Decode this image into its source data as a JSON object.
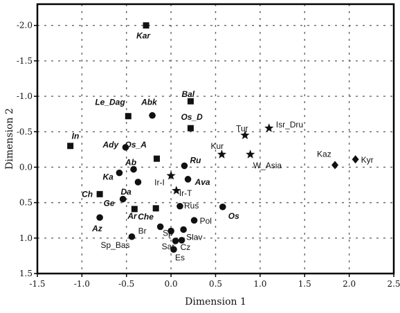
{
  "chart_data": {
    "type": "scatter",
    "title": "",
    "xlabel": "Dimension 1",
    "ylabel": "Dimension 2",
    "xlim": [
      -1.5,
      2.5
    ],
    "ylim": [
      -2.3,
      1.5
    ],
    "y_axis_inverted": true,
    "grid": "dashed",
    "x_ticks": [
      "-1.5",
      "-1.0",
      "-0.5",
      "0.0",
      "0.5",
      "1.0",
      "1.5",
      "2.0",
      "2.5"
    ],
    "x_tick_values": [
      -1.5,
      -1.0,
      -0.5,
      0.0,
      0.5,
      1.0,
      1.5,
      2.0,
      2.5
    ],
    "y_ticks": [
      "-2.0",
      "-1.5",
      "-1.0",
      "-0.5",
      "0.0",
      "0.5",
      "1.0",
      "1.5"
    ],
    "y_tick_values": [
      -2.0,
      -1.5,
      -1.0,
      -0.5,
      0.0,
      0.5,
      1.0,
      1.5
    ],
    "points": [
      {
        "label": "Kar",
        "x": -0.28,
        "y": -2.0,
        "marker": "square",
        "style": "bold"
      },
      {
        "label": "Bal",
        "x": 0.22,
        "y": -0.93,
        "marker": "square",
        "style": "bold"
      },
      {
        "label": "Le_Dag",
        "x": -0.48,
        "y": -0.72,
        "marker": "square",
        "style": "bold"
      },
      {
        "label": "Abk",
        "x": -0.21,
        "y": -0.73,
        "marker": "circle",
        "style": "bold"
      },
      {
        "label": "Os_D",
        "x": 0.22,
        "y": -0.55,
        "marker": "square",
        "style": "bold"
      },
      {
        "label": "In",
        "x": -1.13,
        "y": -0.3,
        "marker": "square",
        "style": "bold"
      },
      {
        "label": "Ady",
        "x": -0.51,
        "y": -0.28,
        "marker": "circle",
        "style": "bold"
      },
      {
        "label": "Os_A",
        "x": -0.16,
        "y": -0.12,
        "marker": "square",
        "style": "bold"
      },
      {
        "label": "Ab",
        "x": -0.42,
        "y": 0.03,
        "marker": "circle",
        "style": "bold"
      },
      {
        "label": "Ru",
        "x": 0.15,
        "y": -0.02,
        "marker": "circle",
        "style": "bold"
      },
      {
        "label": "Ka",
        "x": -0.58,
        "y": 0.08,
        "marker": "circle",
        "style": "bold"
      },
      {
        "label": "Ir-I",
        "x": 0.0,
        "y": 0.12,
        "marker": "star",
        "style": "normal"
      },
      {
        "label": "Ava",
        "x": 0.19,
        "y": 0.17,
        "marker": "circle",
        "style": "bold"
      },
      {
        "label": "Da",
        "x": -0.37,
        "y": 0.21,
        "marker": "circle",
        "style": "bold"
      },
      {
        "label": "Ir-T",
        "x": 0.06,
        "y": 0.33,
        "marker": "star",
        "style": "normal"
      },
      {
        "label": "Ch",
        "x": -0.8,
        "y": 0.38,
        "marker": "square",
        "style": "bold"
      },
      {
        "label": "Ge",
        "x": -0.54,
        "y": 0.45,
        "marker": "circle",
        "style": "bold"
      },
      {
        "label": "Rus",
        "x": 0.1,
        "y": 0.55,
        "marker": "circle",
        "style": "normal"
      },
      {
        "label": "Os",
        "x": 0.58,
        "y": 0.56,
        "marker": "circle",
        "style": "bold"
      },
      {
        "label": "Ar",
        "x": -0.41,
        "y": 0.59,
        "marker": "square",
        "style": "bold"
      },
      {
        "label": "Che",
        "x": -0.17,
        "y": 0.58,
        "marker": "square",
        "style": "bold"
      },
      {
        "label": "Az",
        "x": -0.8,
        "y": 0.71,
        "marker": "circle",
        "style": "bold"
      },
      {
        "label": "Pol",
        "x": 0.26,
        "y": 0.75,
        "marker": "circle",
        "style": "normal"
      },
      {
        "label": "Br",
        "x": -0.12,
        "y": 0.84,
        "marker": "circle",
        "style": "normal"
      },
      {
        "label": "Sp",
        "x": 0.0,
        "y": 0.9,
        "marker": "circle",
        "style": "normal"
      },
      {
        "label": "Slav",
        "x": 0.14,
        "y": 0.88,
        "marker": "circle",
        "style": "normal"
      },
      {
        "label": "Sp_Bas",
        "x": -0.44,
        "y": 0.98,
        "marker": "circle",
        "style": "normal"
      },
      {
        "label": "Sar",
        "x": 0.05,
        "y": 1.04,
        "marker": "circle",
        "style": "normal"
      },
      {
        "label": "Cz",
        "x": 0.12,
        "y": 1.03,
        "marker": "circle",
        "style": "normal"
      },
      {
        "label": "Es",
        "x": 0.03,
        "y": 1.16,
        "marker": "circle",
        "style": "normal"
      },
      {
        "label": "Tur",
        "x": 0.83,
        "y": -0.45,
        "marker": "star",
        "style": "normal"
      },
      {
        "label": "Isr_Dru",
        "x": 1.1,
        "y": -0.55,
        "marker": "star",
        "style": "normal"
      },
      {
        "label": "Kur",
        "x": 0.57,
        "y": -0.18,
        "marker": "star",
        "style": "normal"
      },
      {
        "label": "W_Asia",
        "x": 0.89,
        "y": -0.18,
        "marker": "star",
        "style": "normal"
      },
      {
        "label": "Kaz",
        "x": 1.84,
        "y": -0.03,
        "marker": "diamond",
        "style": "normal"
      },
      {
        "label": "Kyr",
        "x": 2.07,
        "y": -0.11,
        "marker": "diamond",
        "style": "normal"
      }
    ]
  }
}
